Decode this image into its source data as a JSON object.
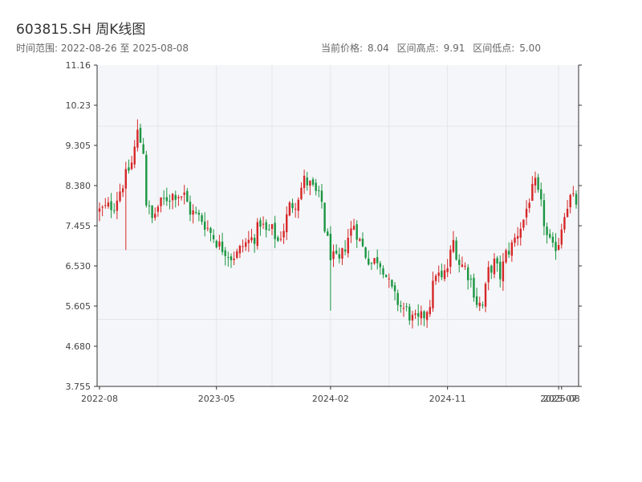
{
  "chart_data": {
    "type": "candlestick",
    "title": "603815.SH 周K线图",
    "date_range_label": "时间范围:",
    "date_range_start": "2022-08-26",
    "date_range_sep": "至",
    "date_range_end": "2025-08-08",
    "current_price_label": "当前价格:",
    "current_price": "8.04",
    "range_high_label": "区间高点:",
    "range_high": "9.91",
    "range_low_label": "区间低点:",
    "range_low": "5.00",
    "ylim": [
      3.755,
      11.16
    ],
    "y_ticks": [
      "11.16",
      "10.23",
      "9.305",
      "8.380",
      "7.455",
      "6.530",
      "5.605",
      "4.680",
      "3.755"
    ],
    "x_tick_labels": [
      "2022-08",
      "2023-05",
      "2024-02",
      "2024-11",
      "2025-07",
      "2025-08"
    ],
    "x_tick_positions": [
      0,
      40,
      79,
      119,
      157,
      158
    ],
    "grid": true,
    "colors": {
      "up": "#d62728",
      "down": "#1a9641",
      "background": "#f5f6f9",
      "grid": "#e3e5ea",
      "axis": "#333333"
    },
    "anchors": [
      [
        0,
        7.8
      ],
      [
        5,
        7.95
      ],
      [
        9,
        8.6
      ],
      [
        11,
        8.9
      ],
      [
        13,
        9.6
      ],
      [
        15,
        9.2
      ],
      [
        16,
        8.0
      ],
      [
        18,
        7.6
      ],
      [
        20,
        7.9
      ],
      [
        23,
        8.1
      ],
      [
        26,
        8.2
      ],
      [
        29,
        8.15
      ],
      [
        31,
        7.8
      ],
      [
        33,
        7.7
      ],
      [
        35,
        7.6
      ],
      [
        37,
        7.4
      ],
      [
        39,
        7.2
      ],
      [
        41,
        7.0
      ],
      [
        43,
        6.9
      ],
      [
        45,
        6.75
      ],
      [
        47,
        6.8
      ],
      [
        49,
        7.0
      ],
      [
        51,
        7.1
      ],
      [
        53,
        7.2
      ],
      [
        55,
        7.55
      ],
      [
        57,
        7.3
      ],
      [
        59,
        7.35
      ],
      [
        61,
        7.1
      ],
      [
        63,
        7.4
      ],
      [
        65,
        7.9
      ],
      [
        67,
        8.0
      ],
      [
        70,
        8.5
      ],
      [
        72,
        8.4
      ],
      [
        74,
        8.2
      ],
      [
        76,
        8.0
      ],
      [
        77,
        7.4
      ],
      [
        79,
        6.8
      ],
      [
        80,
        6.7
      ],
      [
        82,
        6.6
      ],
      [
        85,
        7.2
      ],
      [
        87,
        7.5
      ],
      [
        89,
        7.1
      ],
      [
        91,
        6.8
      ],
      [
        93,
        6.6
      ],
      [
        95,
        6.7
      ],
      [
        97,
        6.5
      ],
      [
        99,
        6.1
      ],
      [
        101,
        5.8
      ],
      [
        103,
        5.6
      ],
      [
        105,
        5.5
      ],
      [
        107,
        5.3
      ],
      [
        109,
        5.25
      ],
      [
        111,
        5.4
      ],
      [
        113,
        5.7
      ],
      [
        115,
        6.4
      ],
      [
        117,
        6.2
      ],
      [
        119,
        6.5
      ],
      [
        121,
        7.1
      ],
      [
        123,
        6.6
      ],
      [
        125,
        6.5
      ],
      [
        127,
        6.2
      ],
      [
        129,
        5.7
      ],
      [
        131,
        5.6
      ],
      [
        133,
        6.4
      ],
      [
        135,
        6.6
      ],
      [
        137,
        6.3
      ],
      [
        139,
        6.8
      ],
      [
        141,
        7.0
      ],
      [
        143,
        7.3
      ],
      [
        145,
        7.6
      ],
      [
        147,
        8.1
      ],
      [
        149,
        8.4
      ],
      [
        151,
        7.9
      ],
      [
        153,
        7.2
      ],
      [
        155,
        6.9
      ],
      [
        157,
        7.1
      ],
      [
        159,
        7.8
      ],
      [
        161,
        8.1
      ],
      [
        163,
        8.0
      ]
    ],
    "spikes": [
      [
        9,
        6.9
      ],
      [
        79,
        5.5
      ],
      [
        13,
        9.91
      ],
      [
        70,
        8.75
      ],
      [
        148,
        8.6
      ]
    ]
  }
}
